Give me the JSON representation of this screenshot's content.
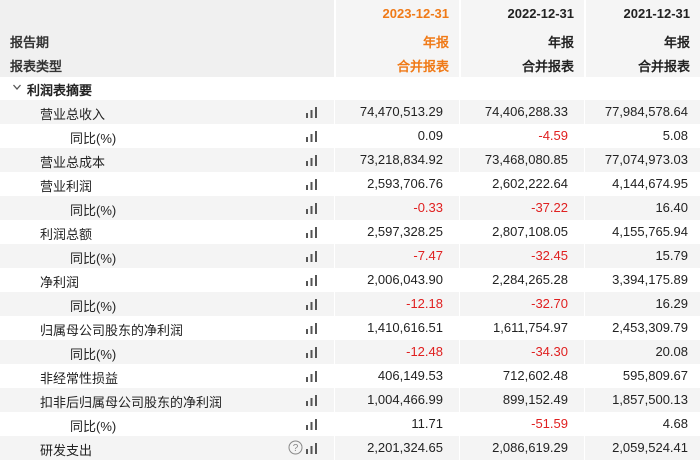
{
  "header": {
    "row_label_period": "报告期",
    "row_label_type": "报表类型",
    "columns": [
      {
        "date": "2023-12-31",
        "period": "年报",
        "type": "合并报表",
        "active": true
      },
      {
        "date": "2022-12-31",
        "period": "年报",
        "type": "合并报表",
        "active": false
      },
      {
        "date": "2021-12-31",
        "period": "年报",
        "type": "合并报表",
        "active": false
      }
    ]
  },
  "colors": {
    "active": "#f07a17",
    "negative": "#e02020",
    "stripe": "#f4f4f4",
    "header_bg": "#f0f0f0"
  },
  "section": {
    "title": "利润表摘要",
    "icon": "chevron-down-icon"
  },
  "rows": [
    {
      "label": "营业总收入",
      "sub": false,
      "values": [
        "74,470,513.29",
        "74,406,288.33",
        "77,984,578.64"
      ],
      "neg": [
        false,
        false,
        false
      ]
    },
    {
      "label": "同比(%)",
      "sub": true,
      "values": [
        "0.09",
        "-4.59",
        "5.08"
      ],
      "neg": [
        false,
        true,
        false
      ]
    },
    {
      "label": "营业总成本",
      "sub": false,
      "values": [
        "73,218,834.92",
        "73,468,080.85",
        "77,074,973.03"
      ],
      "neg": [
        false,
        false,
        false
      ]
    },
    {
      "label": "营业利润",
      "sub": false,
      "values": [
        "2,593,706.76",
        "2,602,222.64",
        "4,144,674.95"
      ],
      "neg": [
        false,
        false,
        false
      ]
    },
    {
      "label": "同比(%)",
      "sub": true,
      "values": [
        "-0.33",
        "-37.22",
        "16.40"
      ],
      "neg": [
        true,
        true,
        false
      ]
    },
    {
      "label": "利润总额",
      "sub": false,
      "values": [
        "2,597,328.25",
        "2,807,108.05",
        "4,155,765.94"
      ],
      "neg": [
        false,
        false,
        false
      ]
    },
    {
      "label": "同比(%)",
      "sub": true,
      "values": [
        "-7.47",
        "-32.45",
        "15.79"
      ],
      "neg": [
        true,
        true,
        false
      ]
    },
    {
      "label": "净利润",
      "sub": false,
      "values": [
        "2,006,043.90",
        "2,284,265.28",
        "3,394,175.89"
      ],
      "neg": [
        false,
        false,
        false
      ]
    },
    {
      "label": "同比(%)",
      "sub": true,
      "values": [
        "-12.18",
        "-32.70",
        "16.29"
      ],
      "neg": [
        true,
        true,
        false
      ]
    },
    {
      "label": "归属母公司股东的净利润",
      "sub": false,
      "values": [
        "1,410,616.51",
        "1,611,754.97",
        "2,453,309.79"
      ],
      "neg": [
        false,
        false,
        false
      ]
    },
    {
      "label": "同比(%)",
      "sub": true,
      "values": [
        "-12.48",
        "-34.30",
        "20.08"
      ],
      "neg": [
        true,
        true,
        false
      ]
    },
    {
      "label": "非经常性损益",
      "sub": false,
      "values": [
        "406,149.53",
        "712,602.48",
        "595,809.67"
      ],
      "neg": [
        false,
        false,
        false
      ]
    },
    {
      "label": "扣非后归属母公司股东的净利润",
      "sub": false,
      "values": [
        "1,004,466.99",
        "899,152.49",
        "1,857,500.13"
      ],
      "neg": [
        false,
        false,
        false
      ]
    },
    {
      "label": "同比(%)",
      "sub": true,
      "values": [
        "11.71",
        "-51.59",
        "4.68"
      ],
      "neg": [
        false,
        true,
        false
      ]
    },
    {
      "label": "研发支出",
      "sub": false,
      "help": true,
      "values": [
        "2,201,324.65",
        "2,086,619.29",
        "2,059,524.41"
      ],
      "neg": [
        false,
        false,
        false
      ]
    }
  ]
}
